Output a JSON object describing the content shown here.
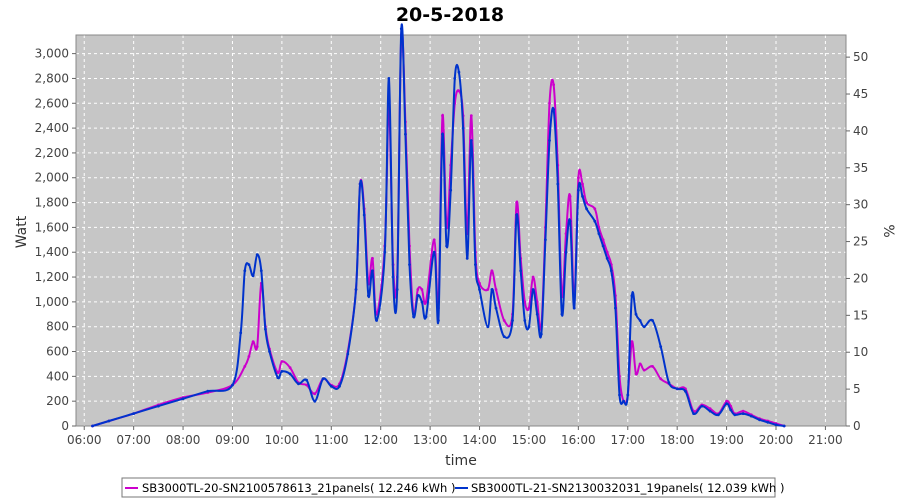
{
  "chart_data": {
    "type": "line",
    "title": "20-5-2018",
    "xlabel": "time",
    "ylabel": "Watt",
    "y2label": "%",
    "xlim": [
      "05:50",
      "21:25"
    ],
    "ylim": [
      0,
      3150
    ],
    "y2lim": [
      0,
      53
    ],
    "grid": true,
    "legend_position": "bottom",
    "x_ticks": [
      "06:00",
      "07:00",
      "08:00",
      "09:00",
      "10:00",
      "11:00",
      "12:00",
      "13:00",
      "14:00",
      "15:00",
      "16:00",
      "17:00",
      "18:00",
      "19:00",
      "20:00",
      "21:00"
    ],
    "y_ticks": [
      0,
      200,
      400,
      600,
      800,
      1000,
      1200,
      1400,
      1600,
      1800,
      2000,
      2200,
      2400,
      2600,
      2800,
      3000
    ],
    "y_tick_labels": [
      "0",
      "200",
      "400",
      "600",
      "800",
      "1,000",
      "1,200",
      "1,400",
      "1,600",
      "1,800",
      "2,000",
      "2,200",
      "2,400",
      "2,600",
      "2,800",
      "3,000"
    ],
    "y2_ticks": [
      0,
      5,
      10,
      15,
      20,
      25,
      30,
      35,
      40,
      45,
      50
    ],
    "series": [
      {
        "name": "SB3000TL-20-SN2100578613_21panels( 12.246 kWh )",
        "color": "#cc00cc",
        "points": [
          [
            "06:10",
            0
          ],
          [
            "06:30",
            40
          ],
          [
            "07:00",
            100
          ],
          [
            "07:30",
            170
          ],
          [
            "08:00",
            230
          ],
          [
            "08:30",
            270
          ],
          [
            "09:00",
            330
          ],
          [
            "09:15",
            480
          ],
          [
            "09:20",
            560
          ],
          [
            "09:25",
            680
          ],
          [
            "09:30",
            640
          ],
          [
            "09:35",
            1150
          ],
          [
            "09:40",
            800
          ],
          [
            "09:45",
            620
          ],
          [
            "09:55",
            430
          ],
          [
            "10:00",
            520
          ],
          [
            "10:10",
            470
          ],
          [
            "10:20",
            350
          ],
          [
            "10:30",
            330
          ],
          [
            "10:40",
            260
          ],
          [
            "10:50",
            380
          ],
          [
            "11:00",
            330
          ],
          [
            "11:10",
            340
          ],
          [
            "11:20",
            600
          ],
          [
            "11:30",
            1100
          ],
          [
            "11:35",
            1950
          ],
          [
            "11:40",
            1750
          ],
          [
            "11:45",
            1150
          ],
          [
            "11:50",
            1350
          ],
          [
            "11:55",
            900
          ],
          [
            "12:05",
            1450
          ],
          [
            "12:10",
            2600
          ],
          [
            "12:15",
            1300
          ],
          [
            "12:20",
            1200
          ],
          [
            "12:25",
            3150
          ],
          [
            "12:30",
            2450
          ],
          [
            "12:35",
            1450
          ],
          [
            "12:40",
            900
          ],
          [
            "12:45",
            1100
          ],
          [
            "12:50",
            1100
          ],
          [
            "12:55",
            1000
          ],
          [
            "13:05",
            1500
          ],
          [
            "13:10",
            950
          ],
          [
            "13:15",
            2500
          ],
          [
            "13:20",
            1600
          ],
          [
            "13:25",
            2100
          ],
          [
            "13:30",
            2600
          ],
          [
            "13:35",
            2700
          ],
          [
            "13:40",
            2500
          ],
          [
            "13:45",
            1550
          ],
          [
            "13:50",
            2500
          ],
          [
            "13:55",
            1400
          ],
          [
            "14:00",
            1150
          ],
          [
            "14:10",
            1100
          ],
          [
            "14:15",
            1250
          ],
          [
            "14:20",
            1100
          ],
          [
            "14:30",
            850
          ],
          [
            "14:40",
            900
          ],
          [
            "14:45",
            1800
          ],
          [
            "14:50",
            1350
          ],
          [
            "14:55",
            1000
          ],
          [
            "15:00",
            950
          ],
          [
            "15:05",
            1200
          ],
          [
            "15:10",
            1000
          ],
          [
            "15:15",
            800
          ],
          [
            "15:20",
            1600
          ],
          [
            "15:25",
            2600
          ],
          [
            "15:30",
            2750
          ],
          [
            "15:35",
            2100
          ],
          [
            "15:40",
            1050
          ],
          [
            "15:45",
            1550
          ],
          [
            "15:50",
            1850
          ],
          [
            "15:55",
            1000
          ],
          [
            "16:00",
            2000
          ],
          [
            "16:05",
            1950
          ],
          [
            "16:10",
            1800
          ],
          [
            "16:20",
            1750
          ],
          [
            "16:25",
            1600
          ],
          [
            "16:30",
            1500
          ],
          [
            "16:35",
            1400
          ],
          [
            "16:40",
            1300
          ],
          [
            "16:45",
            1050
          ],
          [
            "16:50",
            400
          ],
          [
            "16:55",
            200
          ],
          [
            "17:00",
            250
          ],
          [
            "17:05",
            680
          ],
          [
            "17:10",
            420
          ],
          [
            "17:15",
            500
          ],
          [
            "17:20",
            450
          ],
          [
            "17:30",
            480
          ],
          [
            "17:40",
            380
          ],
          [
            "17:50",
            340
          ],
          [
            "18:00",
            300
          ],
          [
            "18:10",
            300
          ],
          [
            "18:20",
            120
          ],
          [
            "18:30",
            170
          ],
          [
            "18:40",
            140
          ],
          [
            "18:50",
            100
          ],
          [
            "19:00",
            200
          ],
          [
            "19:05",
            160
          ],
          [
            "19:10",
            100
          ],
          [
            "19:20",
            120
          ],
          [
            "19:30",
            90
          ],
          [
            "19:40",
            60
          ],
          [
            "19:50",
            40
          ],
          [
            "20:00",
            20
          ],
          [
            "20:10",
            0
          ]
        ]
      },
      {
        "name": "SB3000TL-21-SN2130032031_19panels( 12.039 kWh )",
        "color": "#0033cc",
        "points": [
          [
            "06:10",
            0
          ],
          [
            "06:30",
            40
          ],
          [
            "07:00",
            100
          ],
          [
            "07:30",
            160
          ],
          [
            "08:00",
            220
          ],
          [
            "08:30",
            280
          ],
          [
            "09:00",
            330
          ],
          [
            "09:10",
            750
          ],
          [
            "09:15",
            1250
          ],
          [
            "09:20",
            1300
          ],
          [
            "09:25",
            1210
          ],
          [
            "09:30",
            1380
          ],
          [
            "09:35",
            1250
          ],
          [
            "09:40",
            780
          ],
          [
            "09:45",
            600
          ],
          [
            "09:55",
            390
          ],
          [
            "10:00",
            440
          ],
          [
            "10:10",
            420
          ],
          [
            "10:20",
            340
          ],
          [
            "10:30",
            370
          ],
          [
            "10:40",
            200
          ],
          [
            "10:50",
            380
          ],
          [
            "11:00",
            320
          ],
          [
            "11:10",
            320
          ],
          [
            "11:20",
            580
          ],
          [
            "11:30",
            1100
          ],
          [
            "11:35",
            1950
          ],
          [
            "11:40",
            1700
          ],
          [
            "11:45",
            1050
          ],
          [
            "11:50",
            1250
          ],
          [
            "11:55",
            850
          ],
          [
            "12:05",
            1400
          ],
          [
            "12:10",
            2800
          ],
          [
            "12:15",
            1200
          ],
          [
            "12:20",
            1100
          ],
          [
            "12:25",
            3200
          ],
          [
            "12:30",
            2350
          ],
          [
            "12:35",
            1300
          ],
          [
            "12:40",
            880
          ],
          [
            "12:45",
            1050
          ],
          [
            "12:50",
            1000
          ],
          [
            "12:55",
            880
          ],
          [
            "13:05",
            1400
          ],
          [
            "13:10",
            850
          ],
          [
            "13:15",
            2350
          ],
          [
            "13:20",
            1450
          ],
          [
            "13:25",
            1900
          ],
          [
            "13:30",
            2800
          ],
          [
            "13:35",
            2850
          ],
          [
            "13:40",
            2400
          ],
          [
            "13:45",
            1350
          ],
          [
            "13:50",
            2300
          ],
          [
            "13:55",
            1300
          ],
          [
            "14:00",
            1100
          ],
          [
            "14:10",
            800
          ],
          [
            "14:15",
            1100
          ],
          [
            "14:20",
            950
          ],
          [
            "14:30",
            720
          ],
          [
            "14:40",
            850
          ],
          [
            "14:45",
            1700
          ],
          [
            "14:50",
            1250
          ],
          [
            "14:55",
            850
          ],
          [
            "15:00",
            800
          ],
          [
            "15:05",
            1100
          ],
          [
            "15:10",
            900
          ],
          [
            "15:15",
            740
          ],
          [
            "15:20",
            1500
          ],
          [
            "15:25",
            2300
          ],
          [
            "15:30",
            2550
          ],
          [
            "15:35",
            1950
          ],
          [
            "15:40",
            900
          ],
          [
            "15:45",
            1400
          ],
          [
            "15:50",
            1650
          ],
          [
            "15:55",
            950
          ],
          [
            "16:00",
            1900
          ],
          [
            "16:05",
            1850
          ],
          [
            "16:10",
            1750
          ],
          [
            "16:20",
            1650
          ],
          [
            "16:25",
            1550
          ],
          [
            "16:30",
            1450
          ],
          [
            "16:35",
            1350
          ],
          [
            "16:40",
            1250
          ],
          [
            "16:45",
            950
          ],
          [
            "16:50",
            250
          ],
          [
            "16:55",
            200
          ],
          [
            "17:00",
            250
          ],
          [
            "17:05",
            1050
          ],
          [
            "17:10",
            900
          ],
          [
            "17:15",
            850
          ],
          [
            "17:20",
            800
          ],
          [
            "17:30",
            850
          ],
          [
            "17:40",
            640
          ],
          [
            "17:50",
            350
          ],
          [
            "18:00",
            300
          ],
          [
            "18:10",
            280
          ],
          [
            "18:20",
            100
          ],
          [
            "18:30",
            160
          ],
          [
            "18:40",
            120
          ],
          [
            "18:50",
            90
          ],
          [
            "19:00",
            180
          ],
          [
            "19:05",
            130
          ],
          [
            "19:10",
            90
          ],
          [
            "19:20",
            100
          ],
          [
            "19:30",
            80
          ],
          [
            "19:40",
            50
          ],
          [
            "19:50",
            30
          ],
          [
            "20:00",
            10
          ],
          [
            "20:10",
            0
          ]
        ]
      }
    ]
  }
}
